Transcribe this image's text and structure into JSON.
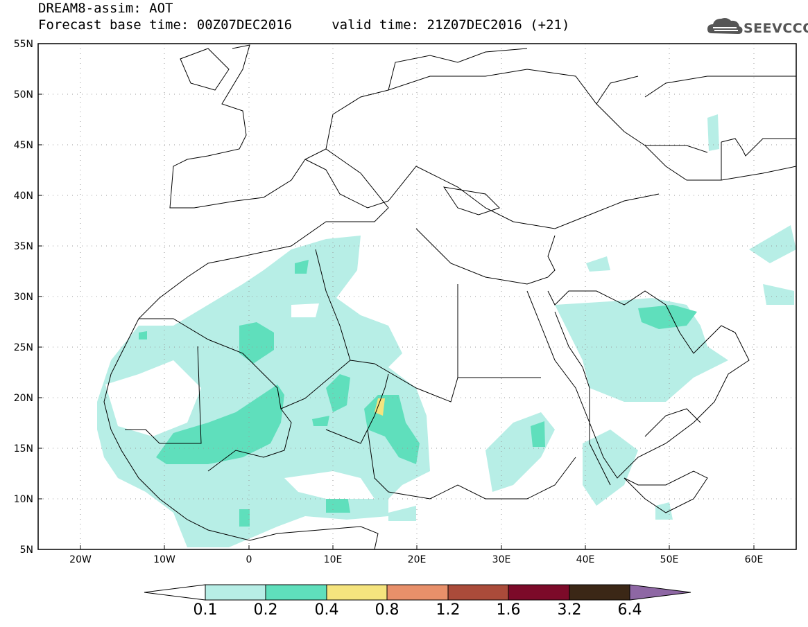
{
  "header": {
    "title_line1": "DREAM8-assim: AOT",
    "title_line2": "Forecast base time: 00Z07DEC2016     valid time: 21Z07DEC2016 (+21)",
    "logo_text": "SEEVCCC"
  },
  "axes": {
    "lat_labels": [
      "55N",
      "50N",
      "45N",
      "40N",
      "35N",
      "30N",
      "25N",
      "20N",
      "15N",
      "10N",
      "5N"
    ],
    "lon_labels": [
      "20W",
      "10W",
      "0",
      "10E",
      "20E",
      "30E",
      "40E",
      "50E",
      "60E"
    ]
  },
  "colorbar": {
    "labels": [
      "0.1",
      "0.2",
      "0.4",
      "0.8",
      "1.2",
      "1.6",
      "3.2",
      "6.4"
    ],
    "colors": [
      "#ffffff",
      "#b7eee6",
      "#5fdfbc",
      "#f5e47e",
      "#e8906a",
      "#aa4b3a",
      "#7c0a29",
      "#3b2716",
      "#8e67a4"
    ]
  }
}
